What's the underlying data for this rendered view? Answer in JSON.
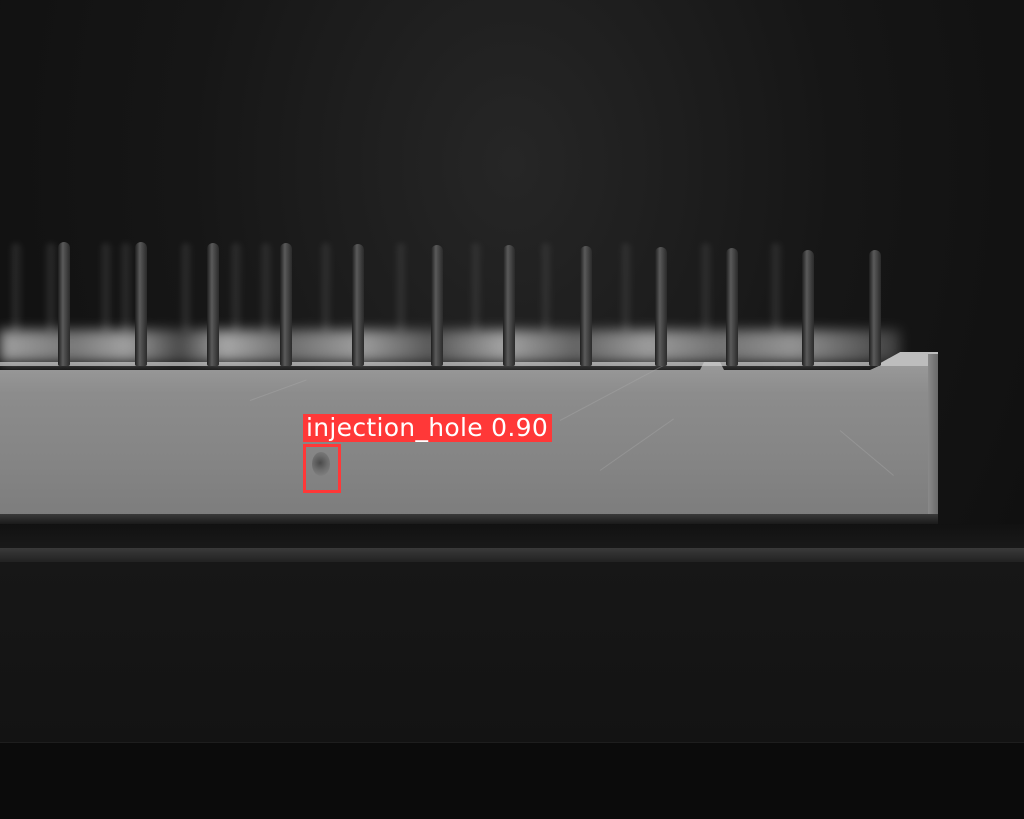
{
  "image": {
    "subject": "component-housing-with-pins",
    "palette": {
      "annotation_color": "#ff3838",
      "label_text_color": "#ffffff"
    }
  },
  "detections": [
    {
      "label": "injection_hole",
      "confidence": "0.90",
      "display_text": "injection_hole 0.90"
    }
  ]
}
